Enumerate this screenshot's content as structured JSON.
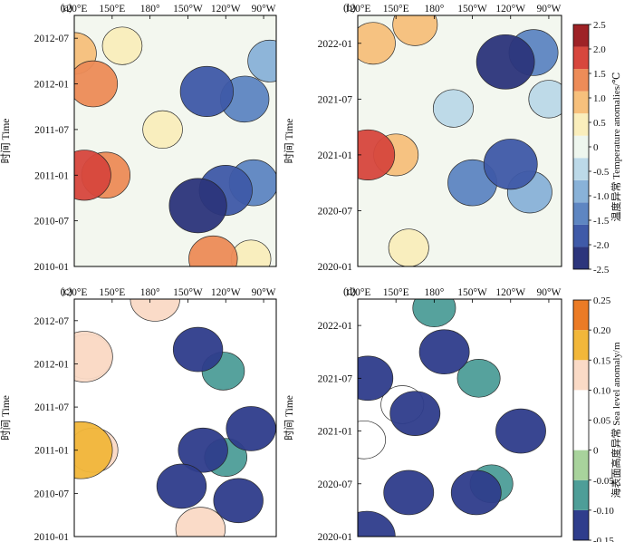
{
  "chart_data": [
    {
      "type": "heatmap",
      "panel_label": "(a)",
      "x_ticks": [
        "120°E",
        "150°E",
        "180°",
        "150°W",
        "120°W",
        "90°W"
      ],
      "x_range_deg_east": [
        120,
        280
      ],
      "y_ticks": [
        "2010-01",
        "2010-07",
        "2011-01",
        "2011-07",
        "2012-01",
        "2012-07"
      ],
      "y_range": [
        "2010-01",
        "2012-10"
      ],
      "ylabel": "时间 Time",
      "variable": "temperature",
      "features": [
        {
          "x_deg_east": 128,
          "date": "2011-01",
          "value": 2.0
        },
        {
          "x_deg_east": 145,
          "date": "2011-01",
          "value": 1.5
        },
        {
          "x_deg_east": 135,
          "date": "2012-01",
          "value": 1.5
        },
        {
          "x_deg_east": 120,
          "date": "2012-05",
          "value": 1.0
        },
        {
          "x_deg_east": 158,
          "date": "2012-06",
          "value": 0.5
        },
        {
          "x_deg_east": 218,
          "date": "2010-09",
          "value": -2.5
        },
        {
          "x_deg_east": 240,
          "date": "2010-11",
          "value": -2.0
        },
        {
          "x_deg_east": 262,
          "date": "2010-12",
          "value": -1.5
        },
        {
          "x_deg_east": 225,
          "date": "2011-12",
          "value": -2.0
        },
        {
          "x_deg_east": 255,
          "date": "2011-11",
          "value": -1.5
        },
        {
          "x_deg_east": 230,
          "date": "2010-02",
          "value": 1.5
        },
        {
          "x_deg_east": 260,
          "date": "2010-02",
          "value": 0.5
        },
        {
          "x_deg_east": 190,
          "date": "2011-07",
          "value": 0.5
        },
        {
          "x_deg_east": 275,
          "date": "2012-04",
          "value": -1.0
        }
      ]
    },
    {
      "type": "heatmap",
      "panel_label": "(b)",
      "x_ticks": [
        "120°E",
        "150°E",
        "180°",
        "150°W",
        "120°W",
        "90°W"
      ],
      "x_range_deg_east": [
        120,
        280
      ],
      "y_ticks": [
        "2020-01",
        "2020-07",
        "2021-01",
        "2021-07",
        "2022-01"
      ],
      "y_range": [
        "2020-01",
        "2022-04"
      ],
      "ylabel": "时间 Time",
      "variable": "temperature",
      "features": [
        {
          "x_deg_east": 128,
          "date": "2021-01",
          "value": 2.0
        },
        {
          "x_deg_east": 150,
          "date": "2021-01",
          "value": 1.0
        },
        {
          "x_deg_east": 132,
          "date": "2022-01",
          "value": 1.0
        },
        {
          "x_deg_east": 165,
          "date": "2022-03",
          "value": 1.0
        },
        {
          "x_deg_east": 236,
          "date": "2021-11",
          "value": -2.5
        },
        {
          "x_deg_east": 258,
          "date": "2021-12",
          "value": -1.5
        },
        {
          "x_deg_east": 240,
          "date": "2020-12",
          "value": -2.0
        },
        {
          "x_deg_east": 210,
          "date": "2020-10",
          "value": -1.5
        },
        {
          "x_deg_east": 255,
          "date": "2020-09",
          "value": -1.0
        },
        {
          "x_deg_east": 195,
          "date": "2021-06",
          "value": -0.5
        },
        {
          "x_deg_east": 160,
          "date": "2020-03",
          "value": 0.5
        },
        {
          "x_deg_east": 270,
          "date": "2021-07",
          "value": -0.5
        }
      ]
    },
    {
      "type": "heatmap",
      "panel_label": "(c)",
      "x_ticks": [
        "120°E",
        "150°E",
        "180°",
        "150°W",
        "120°W",
        "90°W"
      ],
      "x_range_deg_east": [
        120,
        280
      ],
      "y_ticks": [
        "2010-01",
        "2010-07",
        "2011-01",
        "2011-07",
        "2012-01",
        "2012-07"
      ],
      "y_range": [
        "2010-01",
        "2012-10"
      ],
      "ylabel": "时间 Time",
      "variable": "sea_level",
      "features": [
        {
          "x_deg_east": 125,
          "date": "2011-01",
          "value": 0.2
        },
        {
          "x_deg_east": 128,
          "date": "2012-02",
          "value": 0.15
        },
        {
          "x_deg_east": 135,
          "date": "2011-01",
          "value": 0.1
        },
        {
          "x_deg_east": 130,
          "date": "2012-02",
          "value": 0.1
        },
        {
          "x_deg_east": 238,
          "date": "2011-12",
          "value": -0.05
        },
        {
          "x_deg_east": 240,
          "date": "2010-12",
          "value": -0.05
        },
        {
          "x_deg_east": 222,
          "date": "2011-01",
          "value": -0.1
        },
        {
          "x_deg_east": 205,
          "date": "2010-08",
          "value": -0.1
        },
        {
          "x_deg_east": 218,
          "date": "2012-03",
          "value": -0.1
        },
        {
          "x_deg_east": 250,
          "date": "2010-06",
          "value": -0.1
        },
        {
          "x_deg_east": 260,
          "date": "2011-04",
          "value": -0.1
        },
        {
          "x_deg_east": 220,
          "date": "2010-02",
          "value": 0.1
        },
        {
          "x_deg_east": 184,
          "date": "2012-10",
          "value": 0.1
        }
      ]
    },
    {
      "type": "heatmap",
      "panel_label": "(d)",
      "x_ticks": [
        "120°E",
        "150°E",
        "180°",
        "150°W",
        "120°W",
        "90°W"
      ],
      "x_range_deg_east": [
        120,
        280
      ],
      "y_ticks": [
        "2020-01",
        "2020-07",
        "2021-01",
        "2021-07",
        "2022-01"
      ],
      "y_range": [
        "2020-01",
        "2022-04"
      ],
      "ylabel": "时间 Time",
      "variable": "sea_level",
      "features": [
        {
          "x_deg_east": 180,
          "date": "2022-03",
          "value": -0.05
        },
        {
          "x_deg_east": 215,
          "date": "2021-07",
          "value": -0.05
        },
        {
          "x_deg_east": 225,
          "date": "2020-07",
          "value": -0.05
        },
        {
          "x_deg_east": 128,
          "date": "2021-07",
          "value": -0.1
        },
        {
          "x_deg_east": 165,
          "date": "2021-03",
          "value": -0.1
        },
        {
          "x_deg_east": 213,
          "date": "2020-06",
          "value": -0.1
        },
        {
          "x_deg_east": 160,
          "date": "2020-06",
          "value": -0.1
        },
        {
          "x_deg_east": 248,
          "date": "2021-01",
          "value": -0.1
        },
        {
          "x_deg_east": 188,
          "date": "2021-10",
          "value": -0.1
        },
        {
          "x_deg_east": 127,
          "date": "2020-01",
          "value": -0.15
        },
        {
          "x_deg_east": 125,
          "date": "2020-12",
          "value": 0.05
        },
        {
          "x_deg_east": 155,
          "date": "2021-04",
          "value": 0.05
        }
      ]
    }
  ],
  "colorbars": [
    {
      "variable": "temperature",
      "label": "温度异常 Temperature anomalies/℃",
      "ticks": [
        "2.5",
        "2.0",
        "1.5",
        "1.0",
        "0.5",
        "0",
        "-0.5",
        "-1.0",
        "-1.5",
        "-2.0",
        "-2.5"
      ],
      "range": [
        -2.5,
        2.5
      ],
      "colors": [
        "#2c357c",
        "#3f5aa8",
        "#5e86c2",
        "#89b2d8",
        "#bcd9e8",
        "#eef6ee",
        "#faeebc",
        "#f7c07c",
        "#ed8c58",
        "#d7473d",
        "#9e2226"
      ]
    },
    {
      "variable": "sea_level",
      "label": "海表面高度异常 Sea level anomaly/m",
      "ticks": [
        "0.25",
        "0.20",
        "0.15",
        "0.10",
        "0.05",
        "0",
        "-0.05",
        "-0.10",
        "-0.15"
      ],
      "range": [
        -0.15,
        0.25
      ],
      "colors": [
        "#2f3d8c",
        "#4e9e98",
        "#a8d39c",
        "#ffffff",
        "#ffffff",
        "#fadac6",
        "#f2b73a",
        "#eb7b25"
      ]
    }
  ]
}
